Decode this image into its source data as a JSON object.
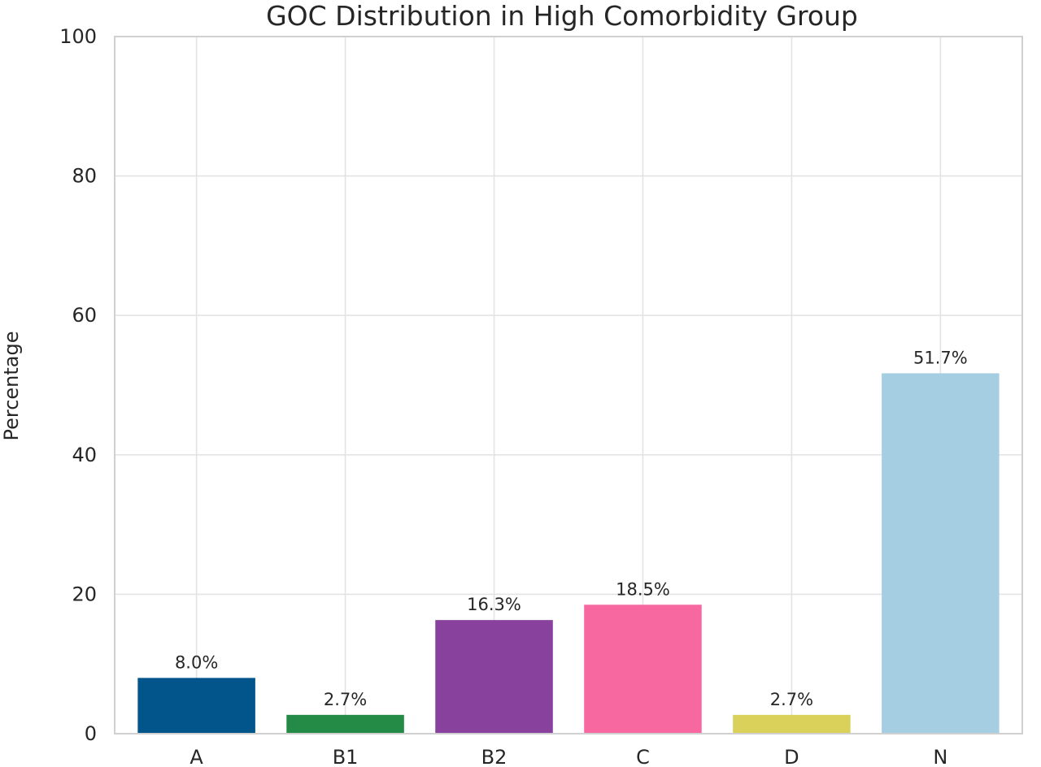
{
  "chart_data": {
    "type": "bar",
    "title": "GOC Distribution in High Comorbidity Group",
    "xlabel": "",
    "ylabel": "Percentage",
    "ylim": [
      0,
      100
    ],
    "yticks": [
      0,
      20,
      40,
      60,
      80,
      100
    ],
    "categories": [
      "A",
      "B1",
      "B2",
      "C",
      "D",
      "N"
    ],
    "values": [
      8.0,
      2.7,
      16.3,
      18.5,
      2.7,
      51.7
    ],
    "data_labels": [
      "8.0%",
      "2.7%",
      "16.3%",
      "18.5%",
      "2.7%",
      "51.7%"
    ],
    "colors": [
      "#01558b",
      "#238b45",
      "#88419d",
      "#f768a1",
      "#d9d159",
      "#a6cee3"
    ],
    "grid": true,
    "legend": "none"
  }
}
